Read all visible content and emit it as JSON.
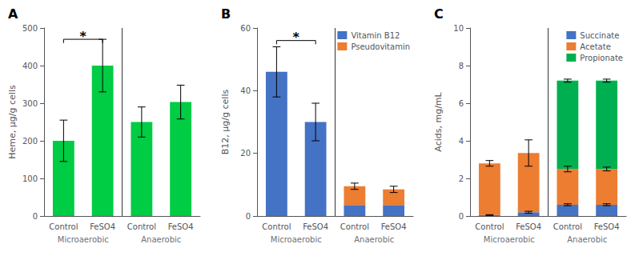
{
  "chart_data": [
    {
      "type": "bar",
      "title": "A",
      "ylabel": "Heme, μg/g cells",
      "categories": [
        "Control",
        "FeSO4",
        "Control",
        "FeSO4"
      ],
      "groups": [
        "Microaerobic",
        "Anaerobic"
      ],
      "series": [
        {
          "values": [
            200,
            400,
            250,
            303
          ],
          "errors": [
            55,
            70,
            40,
            45
          ],
          "color": "#00cc44"
        }
      ],
      "ylim": [
        0,
        500
      ],
      "yticks": [
        0,
        100,
        200,
        300,
        400,
        500
      ],
      "annotations": [
        {
          "text": "*",
          "y": 470,
          "from": 0,
          "to": 1
        }
      ],
      "grid": false
    },
    {
      "type": "bar",
      "title": "B",
      "ylabel": "B12, μg/g cells",
      "categories": [
        "Control",
        "FeSO4",
        "Control",
        "FeSO4"
      ],
      "groups": [
        "Microaerobic",
        "Anaerobic"
      ],
      "stacked": true,
      "series": [
        {
          "name": "Vitamin B12",
          "color": "#4472c4",
          "values": [
            46,
            30,
            3.5,
            3.5
          ],
          "errors": [
            8,
            6,
            null,
            null
          ]
        },
        {
          "name": "Pseudovitamin",
          "color": "#ed7d31",
          "values": [
            0,
            0,
            6,
            5
          ],
          "errors": [
            null,
            null,
            1,
            1
          ]
        }
      ],
      "ylim": [
        0,
        60
      ],
      "yticks": [
        0,
        20,
        40,
        60
      ],
      "annotations": [
        {
          "text": "*",
          "y": 56,
          "from": 0,
          "to": 1
        }
      ],
      "legend": "upper right",
      "grid": false
    },
    {
      "type": "bar",
      "title": "C",
      "ylabel": "Acids, mg/mL",
      "categories": [
        "Control",
        "FeSO4",
        "Control",
        "FeSO4"
      ],
      "groups": [
        "Microaerobic",
        "Anaerobic"
      ],
      "stacked": true,
      "series": [
        {
          "name": "Succinate",
          "color": "#4472c4",
          "values": [
            0.05,
            0.2,
            0.6,
            0.6
          ],
          "errors": [
            0.02,
            0.05,
            0.05,
            0.05
          ]
        },
        {
          "name": "Acetate",
          "color": "#ed7d31",
          "values": [
            2.75,
            3.15,
            1.9,
            1.9
          ],
          "errors": [
            0.15,
            0.7,
            0.15,
            0.1
          ]
        },
        {
          "name": "Propionate",
          "color": "#00b050",
          "values": [
            0,
            0,
            4.7,
            4.7
          ],
          "errors": [
            null,
            null,
            0.08,
            0.08
          ]
        }
      ],
      "ylim": [
        0,
        10
      ],
      "yticks": [
        0,
        2,
        4,
        6,
        8,
        10
      ],
      "legend": "upper right",
      "grid": false
    }
  ]
}
